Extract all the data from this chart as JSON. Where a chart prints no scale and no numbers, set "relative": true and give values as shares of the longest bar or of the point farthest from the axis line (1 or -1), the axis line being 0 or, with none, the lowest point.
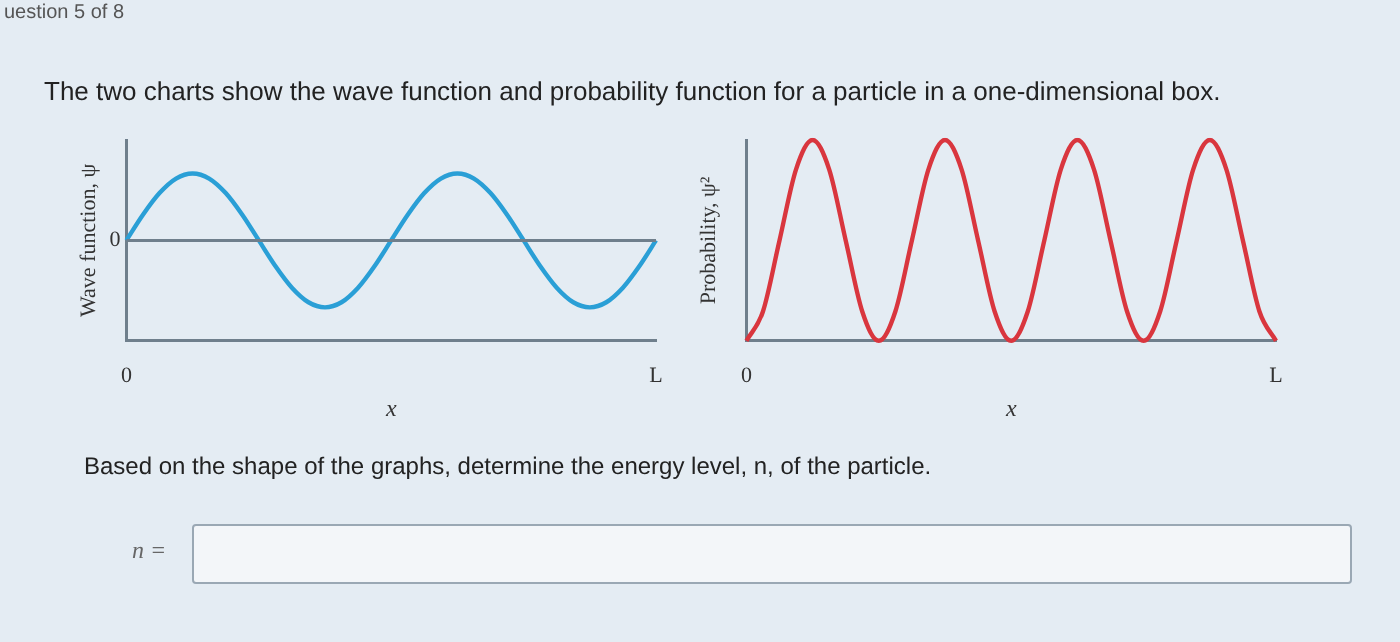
{
  "chart_data": [
    {
      "type": "line",
      "title": "The two charts show the wave function and probability function for a particle in a one-dimensional box.",
      "annotations": [
        "uestion 5 of 8",
        "Based on the shape of the graphs, determine the energy level, n, of the particle.",
        "n ="
      ],
      "xlabel": "x",
      "ylabel": "Wave function, ψ",
      "relative": true,
      "categories": [
        "0",
        null,
        null,
        null,
        null,
        null,
        null,
        null,
        null,
        null,
        null,
        null,
        null,
        null,
        null,
        null,
        null,
        null,
        null,
        null,
        null,
        null,
        null,
        null,
        null,
        null,
        null,
        null,
        null,
        null,
        null,
        null,
        "L"
      ],
      "ref_lines": [
        {
          "axis": "y",
          "value": 0,
          "label": "0",
          "color": "#6f7f8c"
        }
      ],
      "series": [
        {
          "color": "#2a9fd6",
          "values": [
            0,
            0.383,
            0.707,
            0.924,
            1,
            0.924,
            0.707,
            0.383,
            0,
            -0.383,
            -0.707,
            -0.924,
            -1,
            -0.924,
            -0.707,
            -0.383,
            0,
            0.383,
            0.707,
            0.924,
            1,
            0.924,
            0.707,
            0.383,
            0,
            -0.383,
            -0.707,
            -0.924,
            -1,
            -0.924,
            -0.707,
            -0.383,
            0
          ]
        }
      ]
    },
    {
      "type": "line",
      "xlabel": "x",
      "ylabel": "Probability, ψ²",
      "relative": true,
      "categories": [
        "0",
        null,
        null,
        null,
        null,
        null,
        null,
        null,
        null,
        null,
        null,
        null,
        null,
        null,
        null,
        null,
        null,
        null,
        null,
        null,
        null,
        null,
        null,
        null,
        null,
        null,
        null,
        null,
        null,
        null,
        null,
        null,
        "L"
      ],
      "series": [
        {
          "color": "#d9363e",
          "values": [
            0,
            0.146,
            0.5,
            0.854,
            1,
            0.854,
            0.5,
            0.146,
            0,
            0.146,
            0.5,
            0.854,
            1,
            0.854,
            0.5,
            0.146,
            0,
            0.146,
            0.5,
            0.854,
            1,
            0.854,
            0.5,
            0.146,
            0,
            0.146,
            0.5,
            0.854,
            1,
            0.854,
            0.5,
            0.146,
            0
          ]
        }
      ]
    }
  ]
}
